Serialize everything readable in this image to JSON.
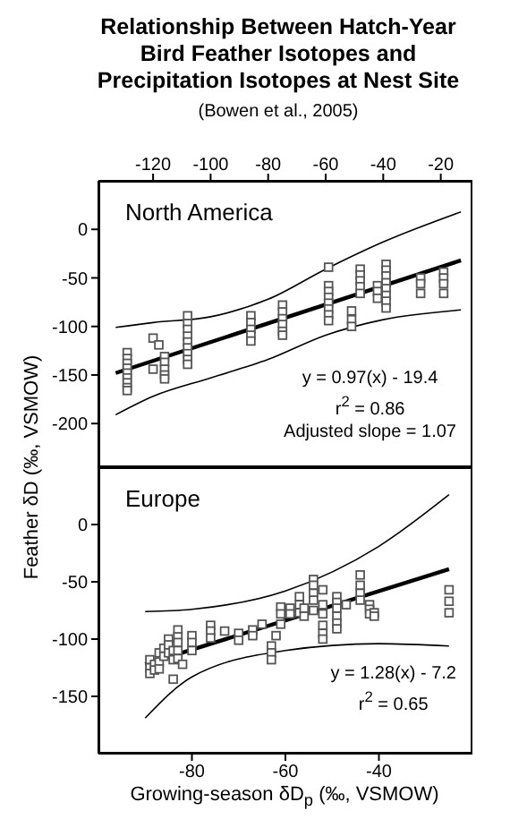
{
  "chart_data": [
    {
      "type": "scatter",
      "title": "Relationship Between Hatch-Year Bird Feather Isotopes and Precipitation Isotopes at Nest Site",
      "subtitle": "(Bowen et al., 2005)",
      "ylabel": "Feather δD (‰, VSMOW)",
      "annotations": [
        "North America",
        "y = 0.97(x) - 19.4",
        "r$^{2}$ = 0.86",
        "Adjusted slope = 1.07"
      ],
      "xlim": [
        -139,
        -9
      ],
      "xticks": [
        -120,
        -100,
        -80,
        -60,
        -40,
        -20
      ],
      "ylim": [
        -245,
        50
      ],
      "yticks": [
        0,
        -50,
        -100,
        -150,
        -200
      ],
      "grid": false,
      "legend": false,
      "series": [
        {
          "color": "#555555",
          "marker": "square",
          "x": [
            -129,
            -129,
            -129,
            -129,
            -129,
            -129,
            -129,
            -129,
            -129,
            -120,
            -120,
            -118,
            -116,
            -116,
            -116,
            -116,
            -116,
            -108,
            -108,
            -108,
            -108,
            -108,
            -108,
            -108,
            -108,
            -108,
            -86,
            -86,
            -86,
            -86,
            -86,
            -75,
            -75,
            -75,
            -75,
            -75,
            -75,
            -59,
            -59,
            -59,
            -59,
            -59,
            -59,
            -59,
            -59,
            -51,
            -51,
            -51,
            -48,
            -48,
            -48,
            -48,
            -48,
            -42,
            -42,
            -42,
            -39,
            -39,
            -39,
            -39,
            -39,
            -39,
            -39,
            -39,
            -27,
            -27,
            -27,
            -19,
            -19,
            -19,
            -19
          ],
          "values": [
            -127,
            -133,
            -138,
            -143,
            -148,
            -153,
            -158,
            -163,
            -166,
            -112,
            -144,
            -119,
            -131,
            -137,
            -144,
            -150,
            -154,
            -89,
            -97,
            -103,
            -110,
            -116,
            -122,
            -128,
            -134,
            -139,
            -89,
            -96,
            -103,
            -109,
            -115,
            -78,
            -85,
            -92,
            -98,
            -105,
            -109,
            -39,
            -58,
            -64,
            -70,
            -76,
            -82,
            -88,
            -94,
            -84,
            -93,
            -100,
            -41,
            -47,
            -53,
            -59,
            -66,
            -58,
            -64,
            -71,
            -36,
            -42,
            -48,
            -55,
            -61,
            -68,
            -74,
            -81,
            -50,
            -56,
            -66,
            -44,
            -50,
            -56,
            -66
          ]
        },
        {
          "type": "line",
          "color": "#000000",
          "x": [
            -133,
            -13
          ],
          "values": [
            -148,
            -32
          ]
        },
        {
          "type": "line",
          "color": "#000000",
          "x": [
            -133,
            -120,
            -100,
            -80,
            -60,
            -40,
            -13
          ],
          "values": [
            -191,
            -172,
            -153,
            -134,
            -109,
            -93,
            -83
          ]
        },
        {
          "type": "line",
          "color": "#000000",
          "x": [
            -133,
            -120,
            -100,
            -80,
            -60,
            -40,
            -13
          ],
          "values": [
            -101,
            -96,
            -90,
            -72,
            -41,
            -13,
            18
          ]
        }
      ]
    },
    {
      "type": "scatter",
      "xlabel": "Growing-season δD$_{p}$ (‰, VSMOW)",
      "annotations": [
        "Europe",
        "y = 1.28(x) - 7.2",
        "r$^{2}$ = 0.65"
      ],
      "xlim": [
        -100,
        -20
      ],
      "xticks": [
        -80,
        -60,
        -40
      ],
      "ylim": [
        -200,
        50
      ],
      "yticks": [
        0,
        -50,
        -100,
        -150
      ],
      "grid": false,
      "legend": false,
      "series": [
        {
          "color": "#555555",
          "marker": "square",
          "x": [
            -89,
            -89,
            -89,
            -88,
            -88,
            -87,
            -87,
            -87,
            -86,
            -86,
            -85,
            -85,
            -85,
            -84,
            -84,
            -84,
            -83,
            -83,
            -83,
            -83,
            -83,
            -82,
            -80,
            -80,
            -80,
            -76,
            -76,
            -76,
            -73,
            -70,
            -70,
            -67,
            -67,
            -65,
            -62,
            -63,
            -63,
            -63,
            -61,
            -61,
            -61,
            -59,
            -59,
            -57,
            -57,
            -57,
            -56,
            -56,
            -54,
            -54,
            -54,
            -54,
            -54,
            -52,
            -52,
            -52,
            -52,
            -52,
            -52,
            -49,
            -49,
            -49,
            -49,
            -49,
            -49,
            -47,
            -44,
            -44,
            -44,
            -44,
            -42,
            -42,
            -42,
            -41,
            -41,
            -25,
            -25,
            -25
          ],
          "values": [
            -118,
            -125,
            -130,
            -122,
            -127,
            -112,
            -120,
            -126,
            -108,
            -115,
            -100,
            -105,
            -112,
            -110,
            -118,
            -135,
            -92,
            -98,
            -103,
            -110,
            -117,
            -122,
            -97,
            -103,
            -110,
            -88,
            -93,
            -99,
            -93,
            -95,
            -101,
            -92,
            -97,
            -87,
            -97,
            -106,
            -112,
            -118,
            -72,
            -78,
            -87,
            -73,
            -78,
            -63,
            -70,
            -77,
            -73,
            -80,
            -48,
            -53,
            -60,
            -66,
            -75,
            -57,
            -70,
            -78,
            -88,
            -95,
            -100,
            -63,
            -68,
            -73,
            -80,
            -86,
            -91,
            -70,
            -44,
            -53,
            -60,
            -66,
            -70,
            -74,
            -78,
            -77,
            -80,
            -57,
            -67,
            -77
          ]
        },
        {
          "type": "line",
          "color": "#000000",
          "x": [
            -90,
            -25
          ],
          "values": [
            -122,
            -39
          ]
        },
        {
          "type": "line",
          "color": "#000000",
          "x": [
            -90,
            -80,
            -60,
            -40,
            -25
          ],
          "values": [
            -169,
            -133,
            -110,
            -104,
            -106
          ]
        },
        {
          "type": "line",
          "color": "#000000",
          "x": [
            -90,
            -80,
            -60,
            -40,
            -25
          ],
          "values": [
            -76,
            -74,
            -58,
            -19,
            26
          ]
        }
      ]
    }
  ]
}
